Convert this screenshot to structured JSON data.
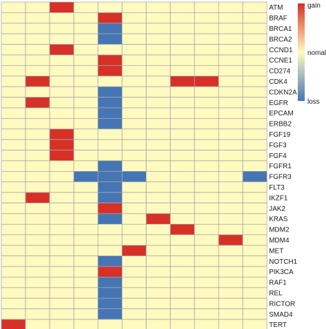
{
  "chart_data": {
    "type": "heatmap",
    "title": "",
    "xlabel": "",
    "ylabel": "",
    "columns": 11,
    "rows": [
      "ATM",
      "BRAF",
      "BRCA1",
      "BRCA2",
      "CCND1",
      "CCNE1",
      "CD274",
      "CDK4",
      "CDKN2A",
      "EGFR",
      "EPCAM",
      "ERBB2",
      "FGF19",
      "FGF3",
      "FGF4",
      "FGFR1",
      "FGFR3",
      "FLT3",
      "IKZF1",
      "JAK2",
      "KRAS",
      "MDM2",
      "MDM4",
      "MET",
      "NOTCH1",
      "PIK3CA",
      "RAF1",
      "REL",
      "RICTOR",
      "SMAD4",
      "TERT"
    ],
    "value_scale": {
      "loss": -1,
      "normal": 0,
      "gain": 1
    },
    "values": [
      [
        0,
        0,
        1,
        0,
        0,
        0,
        0,
        0,
        0,
        0,
        0
      ],
      [
        0,
        0,
        0,
        0,
        1,
        0,
        0,
        0,
        0,
        0,
        0
      ],
      [
        0,
        0,
        0,
        0,
        -1,
        0,
        0,
        0,
        0,
        0,
        0
      ],
      [
        0,
        0,
        0,
        0,
        -1,
        0,
        0,
        0,
        0,
        0,
        0
      ],
      [
        0,
        0,
        1,
        0,
        0,
        0,
        0,
        0,
        0,
        0,
        0
      ],
      [
        0,
        0,
        0,
        0,
        1,
        0,
        0,
        0,
        0,
        0,
        0
      ],
      [
        0,
        0,
        0,
        0,
        1,
        0,
        0,
        0,
        0,
        0,
        0
      ],
      [
        0,
        1,
        0,
        0,
        0,
        0,
        0,
        1,
        1,
        0,
        0
      ],
      [
        0,
        0,
        0,
        0,
        -1,
        0,
        0,
        0,
        0,
        0,
        0
      ],
      [
        0,
        1,
        0,
        0,
        -1,
        0,
        0,
        0,
        0,
        0,
        0
      ],
      [
        0,
        0,
        0,
        0,
        -1,
        0,
        0,
        0,
        0,
        0,
        0
      ],
      [
        0,
        0,
        0,
        0,
        -1,
        0,
        0,
        0,
        0,
        0,
        0
      ],
      [
        0,
        0,
        1,
        0,
        0,
        0,
        0,
        0,
        0,
        0,
        0
      ],
      [
        0,
        0,
        1,
        0,
        0,
        0,
        0,
        0,
        0,
        0,
        0
      ],
      [
        0,
        0,
        1,
        0,
        0,
        0,
        0,
        0,
        0,
        0,
        0
      ],
      [
        0,
        0,
        0,
        0,
        -1,
        0,
        0,
        0,
        0,
        0,
        0
      ],
      [
        0,
        0,
        0,
        -1,
        -1,
        -1,
        0,
        0,
        0,
        0,
        -1
      ],
      [
        0,
        0,
        0,
        0,
        -1,
        0,
        0,
        0,
        0,
        0,
        0
      ],
      [
        0,
        1,
        0,
        0,
        -1,
        0,
        0,
        0,
        0,
        0,
        0
      ],
      [
        0,
        0,
        0,
        0,
        1,
        0,
        0,
        0,
        0,
        0,
        0
      ],
      [
        0,
        0,
        0,
        0,
        -1,
        0,
        1,
        0,
        0,
        0,
        0
      ],
      [
        0,
        0,
        0,
        0,
        0,
        0,
        0,
        1,
        0,
        0,
        0
      ],
      [
        0,
        0,
        0,
        0,
        0,
        0,
        0,
        0,
        0,
        1,
        0
      ],
      [
        0,
        0,
        0,
        0,
        0,
        1,
        0,
        0,
        0,
        0,
        0
      ],
      [
        0,
        0,
        0,
        0,
        -1,
        0,
        0,
        0,
        0,
        0,
        0
      ],
      [
        0,
        0,
        0,
        0,
        1,
        0,
        0,
        0,
        0,
        0,
        0
      ],
      [
        0,
        0,
        0,
        0,
        -1,
        0,
        0,
        0,
        0,
        0,
        0
      ],
      [
        0,
        0,
        0,
        0,
        -1,
        0,
        0,
        0,
        0,
        0,
        0
      ],
      [
        0,
        0,
        0,
        0,
        -1,
        0,
        0,
        0,
        0,
        0,
        0
      ],
      [
        0,
        0,
        0,
        0,
        -1,
        0,
        0,
        0,
        0,
        0,
        0
      ],
      [
        1,
        0,
        0,
        0,
        0,
        0,
        0,
        0,
        0,
        0,
        0
      ]
    ],
    "colors": {
      "gain": "#d73027",
      "normal": "#fffac0",
      "loss": "#4575b4",
      "grid": "#a8a8a8"
    },
    "legend": {
      "labels": [
        "gain",
        "nomal",
        "loss"
      ],
      "position": "top-right",
      "orientation": "vertical-gradient"
    },
    "grid": true
  }
}
